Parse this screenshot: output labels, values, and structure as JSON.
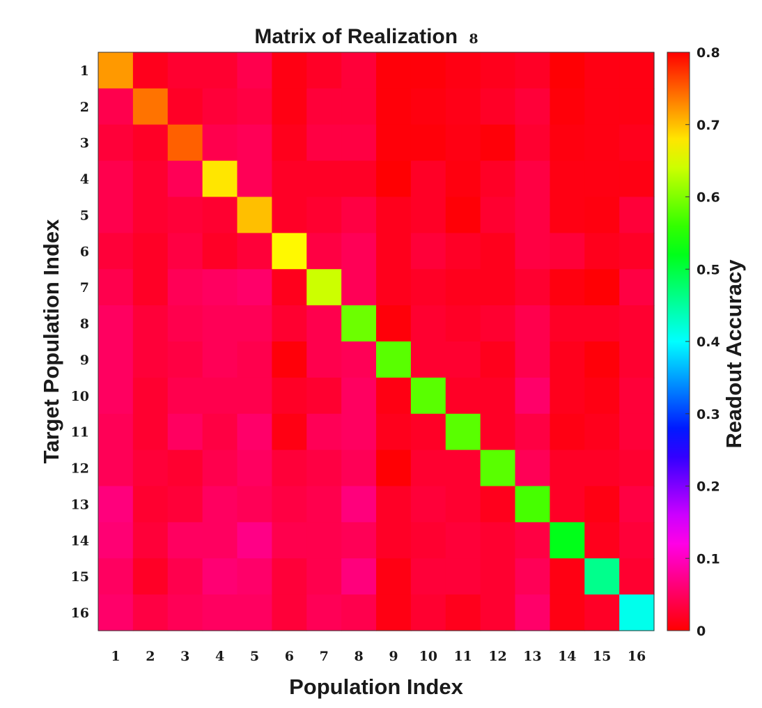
{
  "chart_data": {
    "type": "heatmap",
    "title": "Matrix of Realization",
    "title_suffix": "8",
    "xlabel": "Population Index",
    "ylabel": "Target Population Index",
    "x_categories": [
      "1",
      "2",
      "3",
      "4",
      "5",
      "6",
      "7",
      "8",
      "9",
      "10",
      "11",
      "12",
      "13",
      "14",
      "15",
      "16"
    ],
    "y_categories": [
      "1",
      "2",
      "3",
      "4",
      "5",
      "6",
      "7",
      "8",
      "9",
      "10",
      "11",
      "12",
      "13",
      "14",
      "15",
      "16"
    ],
    "colorbar": {
      "label": "Readout Accuracy",
      "range": [
        0,
        0.8
      ],
      "ticks": [
        "0",
        "0.1",
        "0.2",
        "0.3",
        "0.4",
        "0.5",
        "0.6",
        "0.7",
        "0.8"
      ],
      "colormap": "hsv"
    },
    "values": [
      [
        0.72,
        0.015,
        0.025,
        0.025,
        0.04,
        0.01,
        0.02,
        0.03,
        0.005,
        0.005,
        0.01,
        0.015,
        0.02,
        0.002,
        0.01,
        0.01
      ],
      [
        0.04,
        0.74,
        0.02,
        0.03,
        0.035,
        0.01,
        0.03,
        0.03,
        0.005,
        0.008,
        0.012,
        0.02,
        0.03,
        0.005,
        0.01,
        0.01
      ],
      [
        0.03,
        0.02,
        0.75,
        0.04,
        0.045,
        0.015,
        0.035,
        0.035,
        0.005,
        0.005,
        0.01,
        0.004,
        0.025,
        0.008,
        0.01,
        0.015
      ],
      [
        0.04,
        0.025,
        0.045,
        0.68,
        0.045,
        0.02,
        0.02,
        0.02,
        0.001,
        0.02,
        0.008,
        0.02,
        0.035,
        0.01,
        0.01,
        0.01
      ],
      [
        0.04,
        0.025,
        0.03,
        0.025,
        0.7,
        0.02,
        0.025,
        0.035,
        0.015,
        0.02,
        0.003,
        0.025,
        0.035,
        0.01,
        0.008,
        0.03
      ],
      [
        0.03,
        0.02,
        0.035,
        0.02,
        0.03,
        0.67,
        0.035,
        0.045,
        0.015,
        0.03,
        0.02,
        0.015,
        0.035,
        0.03,
        0.015,
        0.02
      ],
      [
        0.04,
        0.02,
        0.045,
        0.05,
        0.055,
        0.015,
        0.64,
        0.045,
        0.015,
        0.02,
        0.015,
        0.015,
        0.025,
        0.008,
        0.002,
        0.035
      ],
      [
        0.05,
        0.03,
        0.04,
        0.045,
        0.045,
        0.025,
        0.04,
        0.59,
        0.005,
        0.025,
        0.02,
        0.025,
        0.04,
        0.02,
        0.02,
        0.025
      ],
      [
        0.05,
        0.03,
        0.035,
        0.045,
        0.04,
        0.005,
        0.04,
        0.045,
        0.58,
        0.025,
        0.025,
        0.015,
        0.04,
        0.015,
        0.005,
        0.025
      ],
      [
        0.05,
        0.025,
        0.04,
        0.04,
        0.04,
        0.02,
        0.025,
        0.05,
        0.01,
        0.58,
        0.02,
        0.02,
        0.055,
        0.015,
        0.01,
        0.03
      ],
      [
        0.045,
        0.025,
        0.05,
        0.035,
        0.055,
        0.01,
        0.045,
        0.05,
        0.015,
        0.02,
        0.58,
        0.02,
        0.035,
        0.01,
        0.015,
        0.03
      ],
      [
        0.045,
        0.03,
        0.025,
        0.04,
        0.05,
        0.03,
        0.035,
        0.045,
        0.002,
        0.025,
        0.025,
        0.58,
        0.045,
        0.02,
        0.02,
        0.025
      ],
      [
        0.065,
        0.025,
        0.03,
        0.05,
        0.045,
        0.035,
        0.04,
        0.065,
        0.02,
        0.03,
        0.025,
        0.015,
        0.57,
        0.02,
        0.01,
        0.035
      ],
      [
        0.06,
        0.03,
        0.05,
        0.05,
        0.07,
        0.04,
        0.04,
        0.045,
        0.02,
        0.025,
        0.03,
        0.025,
        0.035,
        0.52,
        0.015,
        0.03
      ],
      [
        0.05,
        0.02,
        0.04,
        0.06,
        0.055,
        0.03,
        0.04,
        0.065,
        0.01,
        0.03,
        0.03,
        0.025,
        0.045,
        0.01,
        0.46,
        0.025
      ],
      [
        0.055,
        0.035,
        0.045,
        0.05,
        0.05,
        0.03,
        0.045,
        0.04,
        0.01,
        0.025,
        0.015,
        0.025,
        0.055,
        0.01,
        0.02,
        0.41
      ]
    ]
  }
}
